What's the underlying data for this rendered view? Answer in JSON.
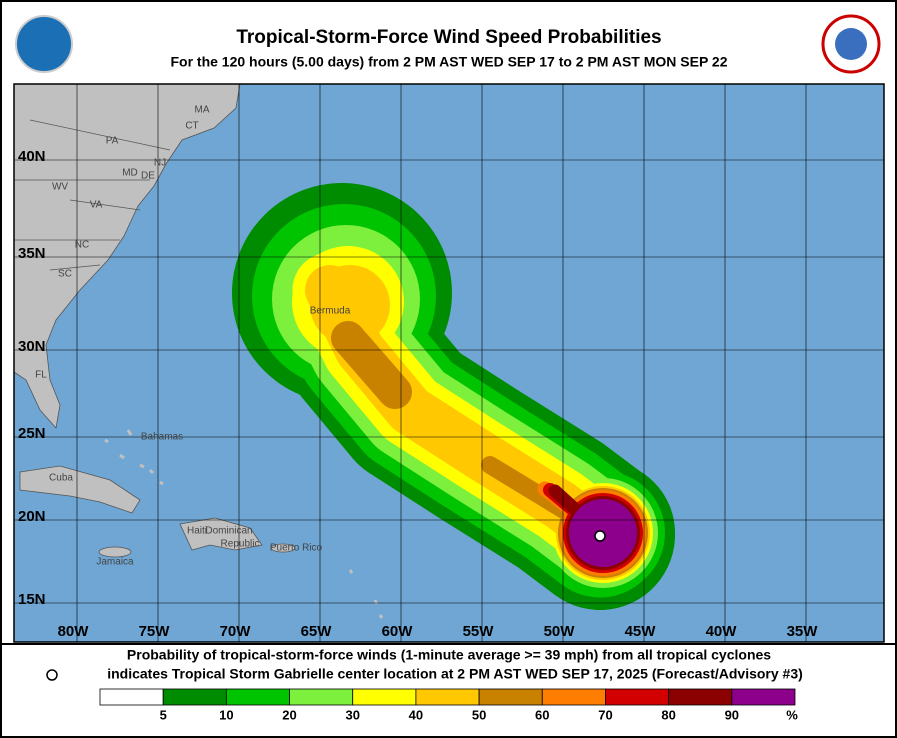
{
  "header": {
    "title": "Tropical-Storm-Force Wind Speed Probabilities",
    "subtitle": "For the 120 hours (5.00 days) from 2 PM AST WED SEP 17 to 2 PM AST MON SEP 22"
  },
  "map": {
    "lat_labels": [
      "40N",
      "35N",
      "30N",
      "25N",
      "20N",
      "15N"
    ],
    "lon_labels": [
      "80W",
      "75W",
      "70W",
      "65W",
      "60W",
      "55W",
      "50W",
      "45W",
      "40W",
      "35W"
    ],
    "place_labels": [
      "MA",
      "CT",
      "PA",
      "NJ",
      "MD",
      "DE",
      "WV",
      "VA",
      "NC",
      "SC",
      "FL",
      "Bahamas",
      "Cuba",
      "Haiti",
      "Dominican",
      "Republic",
      "Jamaica",
      "Puerto Rico",
      "Bermuda"
    ]
  },
  "footer": {
    "line1": "Probability of tropical-storm-force winds (1-minute average >= 39 mph) from all tropical cyclones",
    "line2": "indicates Tropical Storm Gabrielle center location at 2 PM AST WED SEP 17, 2025 (Forecast/Advisory #3)"
  },
  "legend": {
    "ticks": [
      5,
      10,
      20,
      30,
      40,
      50,
      60,
      70,
      80,
      90
    ],
    "unit": "%",
    "colors": [
      "#ffffff",
      "#008c00",
      "#00c400",
      "#7cf03c",
      "#ffff00",
      "#ffc800",
      "#c88200",
      "#ff7d00",
      "#d20000",
      "#8b0000",
      "#8c008c"
    ]
  }
}
